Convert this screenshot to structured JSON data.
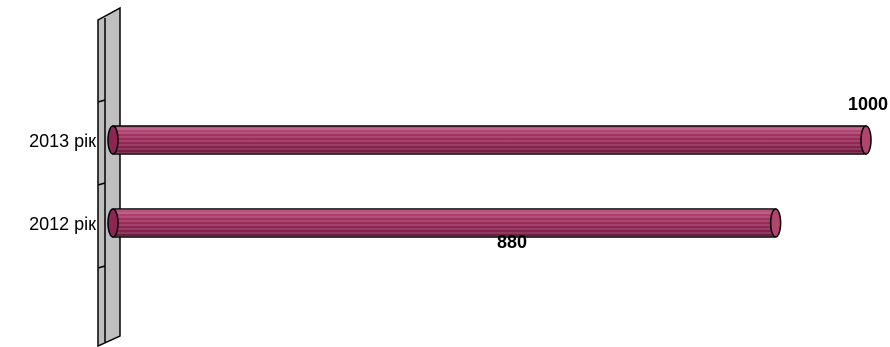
{
  "chart_data": {
    "type": "bar",
    "orientation": "horizontal",
    "categories": [
      "2013 рік",
      "2012 рік"
    ],
    "values": [
      1000,
      880
    ],
    "title": "",
    "xlabel": "",
    "ylabel": "",
    "grid": false,
    "legend": "none",
    "bar_color": "#a03060",
    "data_labels": [
      "1000",
      "880"
    ]
  }
}
